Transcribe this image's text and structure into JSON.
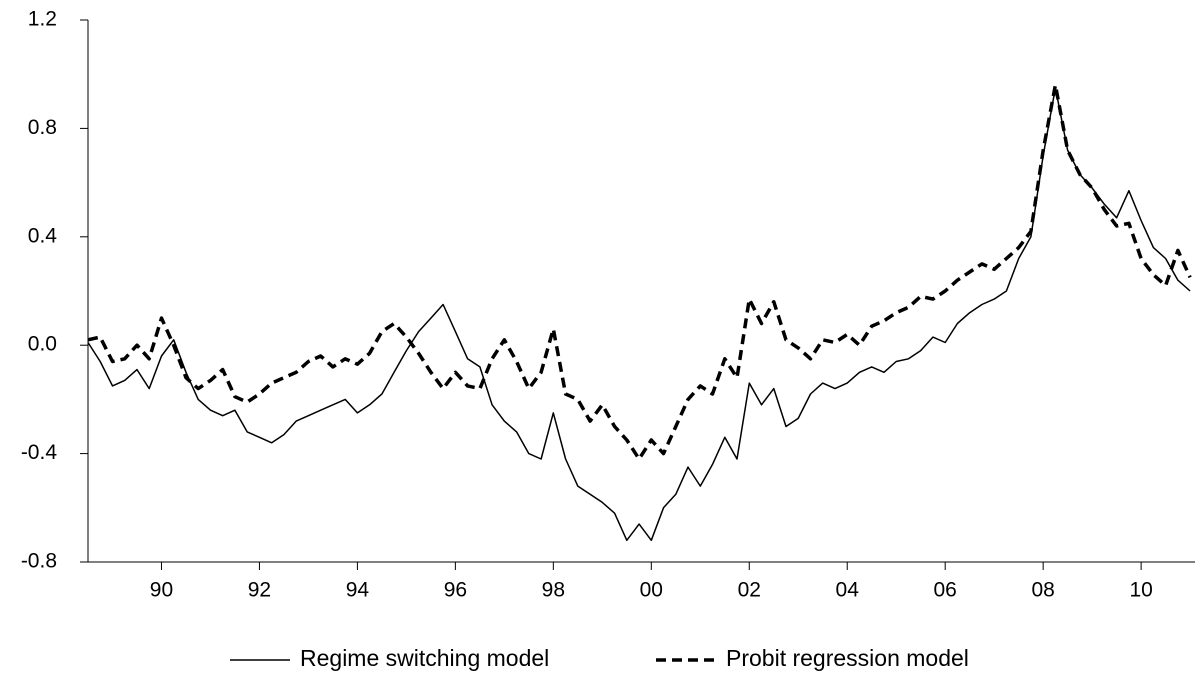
{
  "chart_data": {
    "type": "line",
    "xlim": [
      1989,
      2011.6
    ],
    "ylim": [
      -0.8,
      1.2
    ],
    "yticks": [
      -0.8,
      -0.4,
      {
        "value": 0,
        "label": "0.0"
      },
      0.4,
      0.8,
      1.2
    ],
    "xticks": [
      {
        "value": 1990.5,
        "label": "90"
      },
      {
        "value": 1992.5,
        "label": "92"
      },
      {
        "value": 1994.5,
        "label": "94"
      },
      {
        "value": 1996.5,
        "label": "96"
      },
      {
        "value": 1998.5,
        "label": "98"
      },
      {
        "value": 2000.5,
        "label": "00"
      },
      {
        "value": 2002.5,
        "label": "02"
      },
      {
        "value": 2004.5,
        "label": "04"
      },
      {
        "value": 2006.5,
        "label": "06"
      },
      {
        "value": 2008.5,
        "label": "08"
      },
      {
        "value": 2010.5,
        "label": "10"
      }
    ],
    "x": [
      1989,
      1989.25,
      1989.5,
      1989.75,
      1990,
      1990.25,
      1990.5,
      1990.75,
      1991,
      1991.25,
      1991.5,
      1991.75,
      1992,
      1992.25,
      1992.5,
      1992.75,
      1993,
      1993.25,
      1993.5,
      1993.75,
      1994,
      1994.25,
      1994.5,
      1994.75,
      1995,
      1995.25,
      1995.5,
      1995.75,
      1996,
      1996.25,
      1996.5,
      1996.75,
      1997,
      1997.25,
      1997.5,
      1997.75,
      1998,
      1998.25,
      1998.5,
      1998.75,
      1999,
      1999.25,
      1999.5,
      1999.75,
      2000,
      2000.25,
      2000.5,
      2000.75,
      2001,
      2001.25,
      2001.5,
      2001.75,
      2002,
      2002.25,
      2002.5,
      2002.75,
      2003,
      2003.25,
      2003.5,
      2003.75,
      2004,
      2004.25,
      2004.5,
      2004.75,
      2005,
      2005.25,
      2005.5,
      2005.75,
      2006,
      2006.25,
      2006.5,
      2006.75,
      2007,
      2007.25,
      2007.5,
      2007.75,
      2008,
      2008.25,
      2008.5,
      2008.75,
      2009,
      2009.25,
      2009.5,
      2009.75,
      2010,
      2010.25,
      2010.5,
      2010.75,
      2011,
      2011.25,
      2011.5
    ],
    "series": [
      {
        "name": "Regime switching model",
        "color": "#000000",
        "style": "solid",
        "values": [
          0.01,
          -0.06,
          -0.15,
          -0.13,
          -0.09,
          -0.16,
          -0.04,
          0.02,
          -0.1,
          -0.2,
          -0.24,
          -0.26,
          -0.24,
          -0.32,
          -0.34,
          -0.36,
          -0.33,
          -0.28,
          -0.26,
          -0.24,
          -0.22,
          -0.2,
          -0.25,
          -0.22,
          -0.18,
          -0.1,
          -0.02,
          0.05,
          0.1,
          0.15,
          0.05,
          -0.05,
          -0.08,
          -0.22,
          -0.28,
          -0.32,
          -0.4,
          -0.42,
          -0.25,
          -0.42,
          -0.52,
          -0.55,
          -0.58,
          -0.62,
          -0.72,
          -0.66,
          -0.72,
          -0.6,
          -0.55,
          -0.45,
          -0.52,
          -0.44,
          -0.34,
          -0.42,
          -0.14,
          -0.22,
          -0.16,
          -0.3,
          -0.27,
          -0.18,
          -0.14,
          -0.16,
          -0.14,
          -0.1,
          -0.08,
          -0.1,
          -0.06,
          -0.05,
          -0.02,
          0.03,
          0.01,
          0.08,
          0.12,
          0.15,
          0.17,
          0.2,
          0.32,
          0.4,
          0.7,
          0.95,
          0.72,
          0.63,
          0.58,
          0.52,
          0.47,
          0.57,
          0.46,
          0.36,
          0.32,
          0.24,
          0.2
        ]
      },
      {
        "name": "Probit regression model",
        "color": "#000000",
        "style": "dashed",
        "values": [
          0.02,
          0.03,
          -0.06,
          -0.05,
          0,
          -0.05,
          0.1,
          0,
          -0.12,
          -0.16,
          -0.13,
          -0.09,
          -0.19,
          -0.21,
          -0.18,
          -0.14,
          -0.12,
          -0.1,
          -0.06,
          -0.04,
          -0.08,
          -0.05,
          -0.07,
          -0.03,
          0.05,
          0.08,
          0.03,
          -0.03,
          -0.1,
          -0.16,
          -0.1,
          -0.15,
          -0.16,
          -0.05,
          0.02,
          -0.06,
          -0.16,
          -0.1,
          0.06,
          -0.18,
          -0.2,
          -0.28,
          -0.22,
          -0.3,
          -0.35,
          -0.42,
          -0.35,
          -0.4,
          -0.3,
          -0.2,
          -0.15,
          -0.18,
          -0.05,
          -0.12,
          0.17,
          0.08,
          0.16,
          0.02,
          -0.01,
          -0.05,
          0.02,
          0.01,
          0.04,
          0,
          0.07,
          0.09,
          0.12,
          0.14,
          0.18,
          0.17,
          0.2,
          0.24,
          0.27,
          0.3,
          0.28,
          0.32,
          0.36,
          0.42,
          0.72,
          0.96,
          0.72,
          0.63,
          0.58,
          0.5,
          0.44,
          0.45,
          0.32,
          0.26,
          0.22,
          0.35,
          0.25
        ]
      }
    ]
  }
}
